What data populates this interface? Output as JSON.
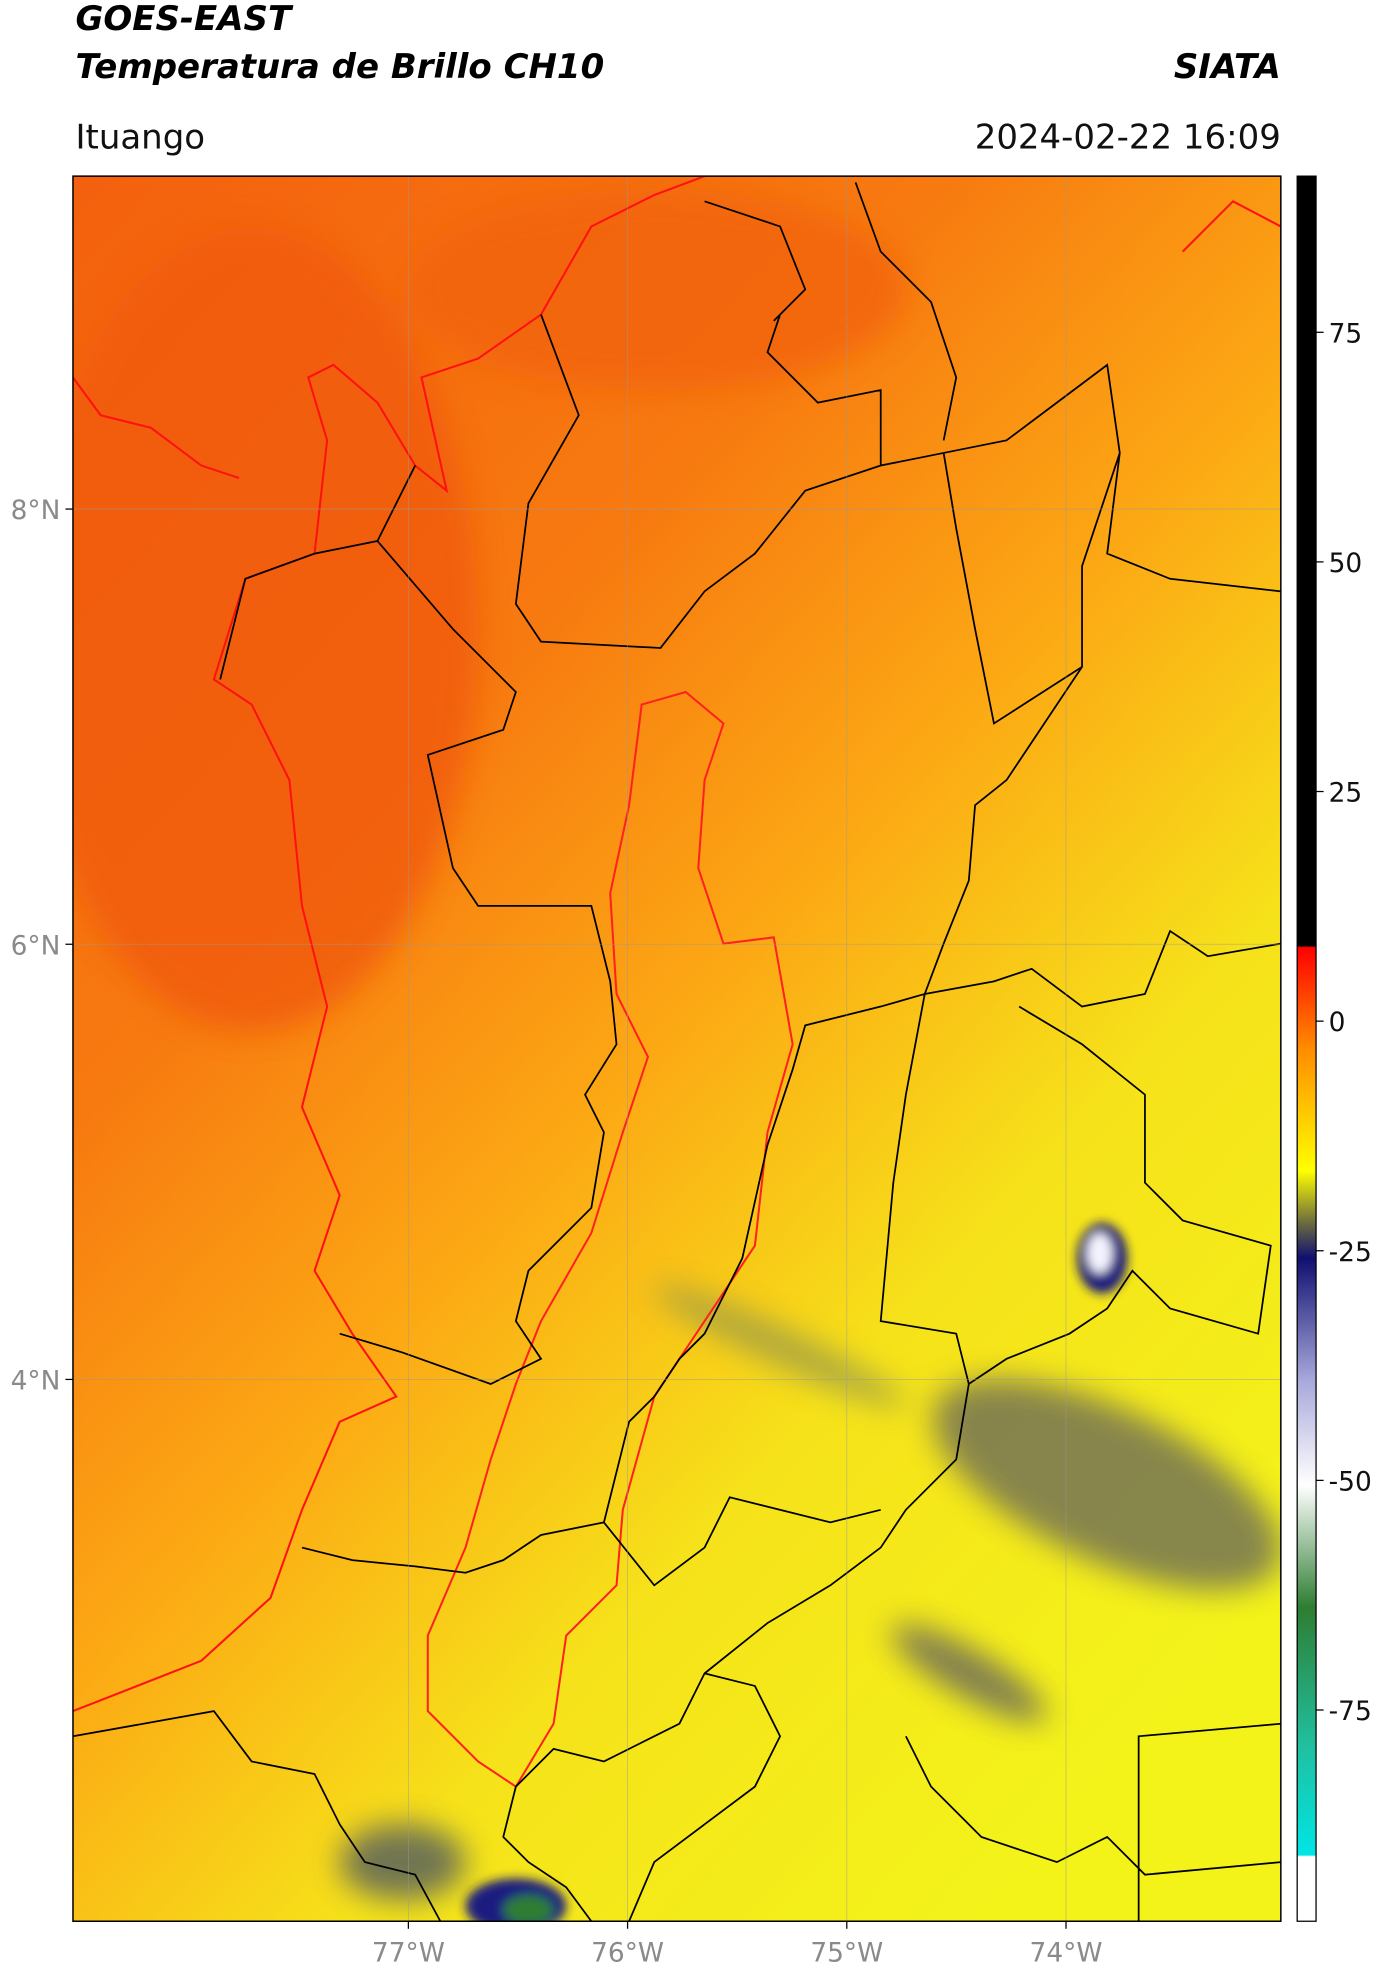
{
  "header": {
    "title": "GOES-EAST",
    "subtitle": "Temperatura de Brillo CH10",
    "brand": "SIATA",
    "location": "Ituango",
    "timestamp": "2024-02-22 16:09"
  },
  "map": {
    "xlim": [
      -78.53,
      -73.02
    ],
    "ylim": [
      1.51,
      9.53
    ],
    "xticks": [
      {
        "value": -77,
        "label": "77°W"
      },
      {
        "value": -76,
        "label": "76°W"
      },
      {
        "value": -75,
        "label": "75°W"
      },
      {
        "value": -74,
        "label": "74°W"
      }
    ],
    "yticks": [
      {
        "value": 8,
        "label": "8°N"
      },
      {
        "value": 6,
        "label": "6°N"
      },
      {
        "value": 4,
        "label": "4°N"
      }
    ],
    "grid": true
  },
  "colorbar": {
    "lim": [
      -98,
      92
    ],
    "ticks": [
      75,
      50,
      25,
      0,
      -25,
      -50,
      -75
    ]
  }
}
